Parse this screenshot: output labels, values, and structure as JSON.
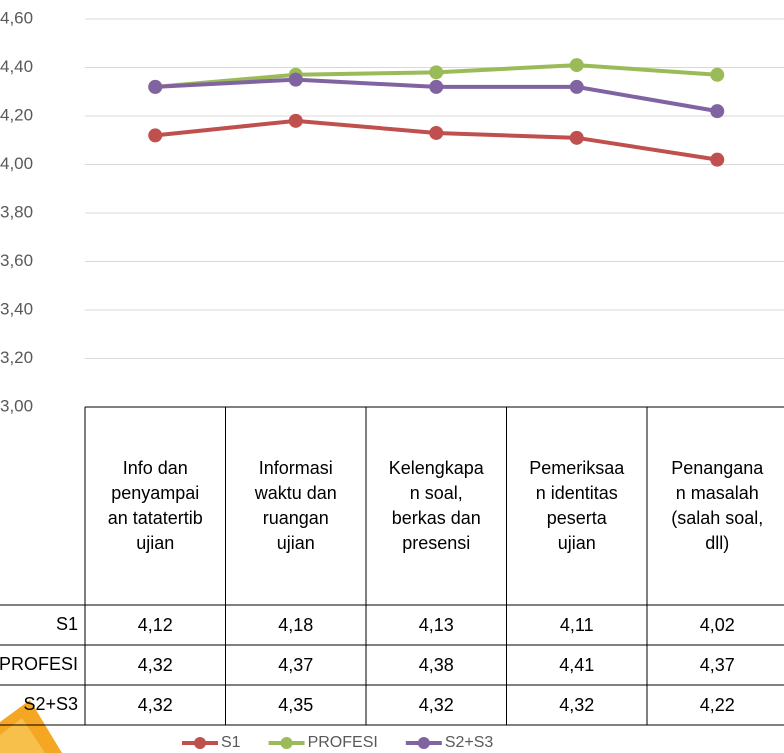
{
  "chart_data": {
    "type": "line",
    "categories": [
      "Info dan penyampaian tatatertib ujian",
      "Informasi waktu dan ruangan ujian",
      "Kelengkapan soal, berkas dan presensi",
      "Pemeriksaan identitas peserta ujian",
      "Penanganan masalah (salah soal, dll)"
    ],
    "series": [
      {
        "name": "S1",
        "color": "#c0504d",
        "values": [
          4.12,
          4.18,
          4.13,
          4.11,
          4.02
        ],
        "value_labels": [
          "4,12",
          "4,18",
          "4,13",
          "4,11",
          "4,02"
        ]
      },
      {
        "name": "PROFESI",
        "color": "#9bbb59",
        "values": [
          4.32,
          4.37,
          4.38,
          4.41,
          4.37
        ],
        "value_labels": [
          "4,32",
          "4,37",
          "4,38",
          "4,41",
          "4,37"
        ]
      },
      {
        "name": "S2+S3",
        "color": "#8064a2",
        "values": [
          4.32,
          4.35,
          4.32,
          4.32,
          4.22
        ],
        "value_labels": [
          "4,32",
          "4,35",
          "4,32",
          "4,32",
          "4,22"
        ]
      }
    ],
    "ylim": [
      3.0,
      4.6
    ],
    "yticks": [
      {
        "value": 3.0,
        "label": "3,00"
      },
      {
        "value": 3.2,
        "label": "3,20"
      },
      {
        "value": 3.4,
        "label": "3,40"
      },
      {
        "value": 3.6,
        "label": "3,60"
      },
      {
        "value": 3.8,
        "label": "3,80"
      },
      {
        "value": 4.0,
        "label": "4,00"
      },
      {
        "value": 4.2,
        "label": "4,20"
      },
      {
        "value": 4.4,
        "label": "4,40"
      },
      {
        "value": 4.6,
        "label": "4,60"
      }
    ],
    "grid": true
  }
}
